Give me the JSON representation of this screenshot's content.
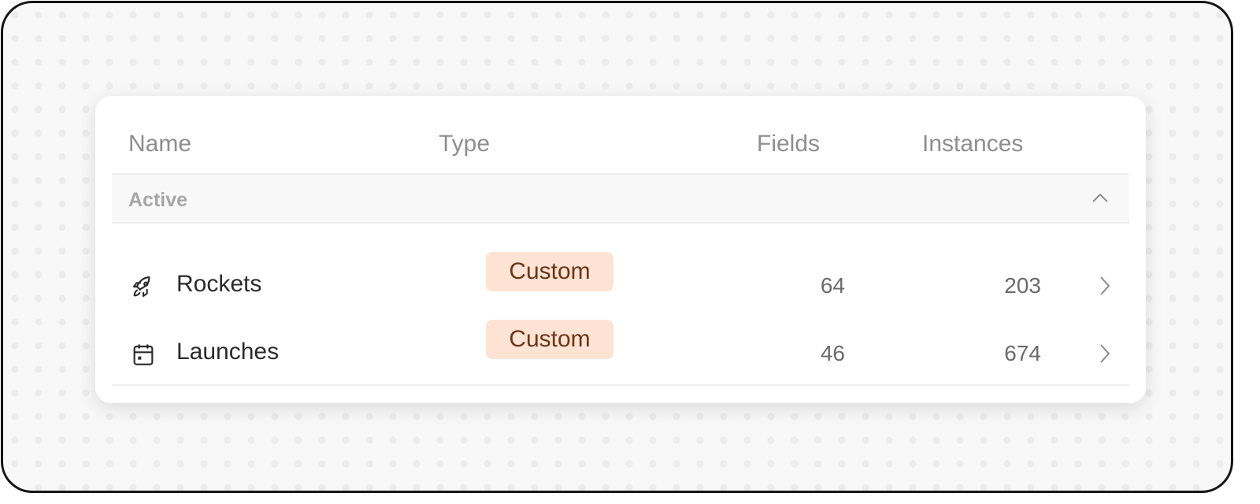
{
  "columns": {
    "name": "Name",
    "type": "Type",
    "fields": "Fields",
    "instances": "Instances"
  },
  "group": {
    "label": "Active",
    "expanded": true
  },
  "rows": [
    {
      "icon": "rocket-icon",
      "name": "Rockets",
      "type": "Custom",
      "fields": "64",
      "instances": "203"
    },
    {
      "icon": "calendar-icon",
      "name": "Launches",
      "type": "Custom",
      "fields": "46",
      "instances": "674"
    }
  ],
  "colors": {
    "badge_bg": "#fde3d4",
    "badge_text": "#6e3515"
  }
}
